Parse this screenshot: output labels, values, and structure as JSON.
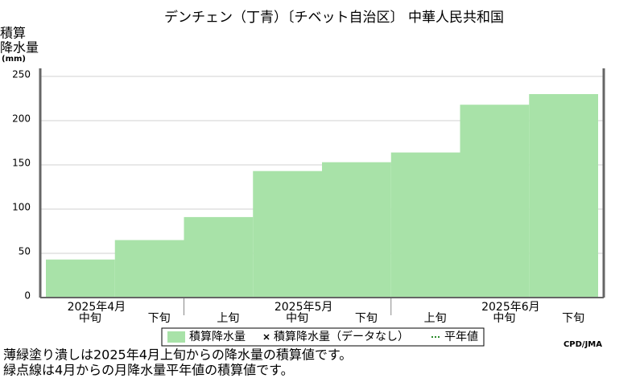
{
  "chart_data": {
    "type": "step-area",
    "title": "デンチェン（丁青）〔チベット自治区〕 中華人民共和国",
    "y_label": [
      "積算",
      "降水量",
      "(mm)"
    ],
    "categories": [
      "中旬",
      "下旬",
      "上旬",
      "中旬",
      "下旬",
      "上旬",
      "中旬",
      "下旬"
    ],
    "months": [
      "2025年4月",
      "2025年5月",
      "2025年6月"
    ],
    "values": [
      43,
      65,
      91,
      143,
      153,
      164,
      218,
      230
    ],
    "color": "#a8e2a8",
    "ylim": [
      0,
      250
    ],
    "yticks": [
      0,
      50,
      100,
      150,
      200,
      250
    ],
    "grid": true,
    "legend": [
      "積算降水量",
      "積算降水量（データなし）",
      "平年値"
    ],
    "credit": "CPD/JMA",
    "notes": [
      "薄緑塗り潰しは2025年4月上旬からの降水量の積算値です。",
      "緑点線は4月からの月降水量平年値の積算値です。"
    ]
  }
}
